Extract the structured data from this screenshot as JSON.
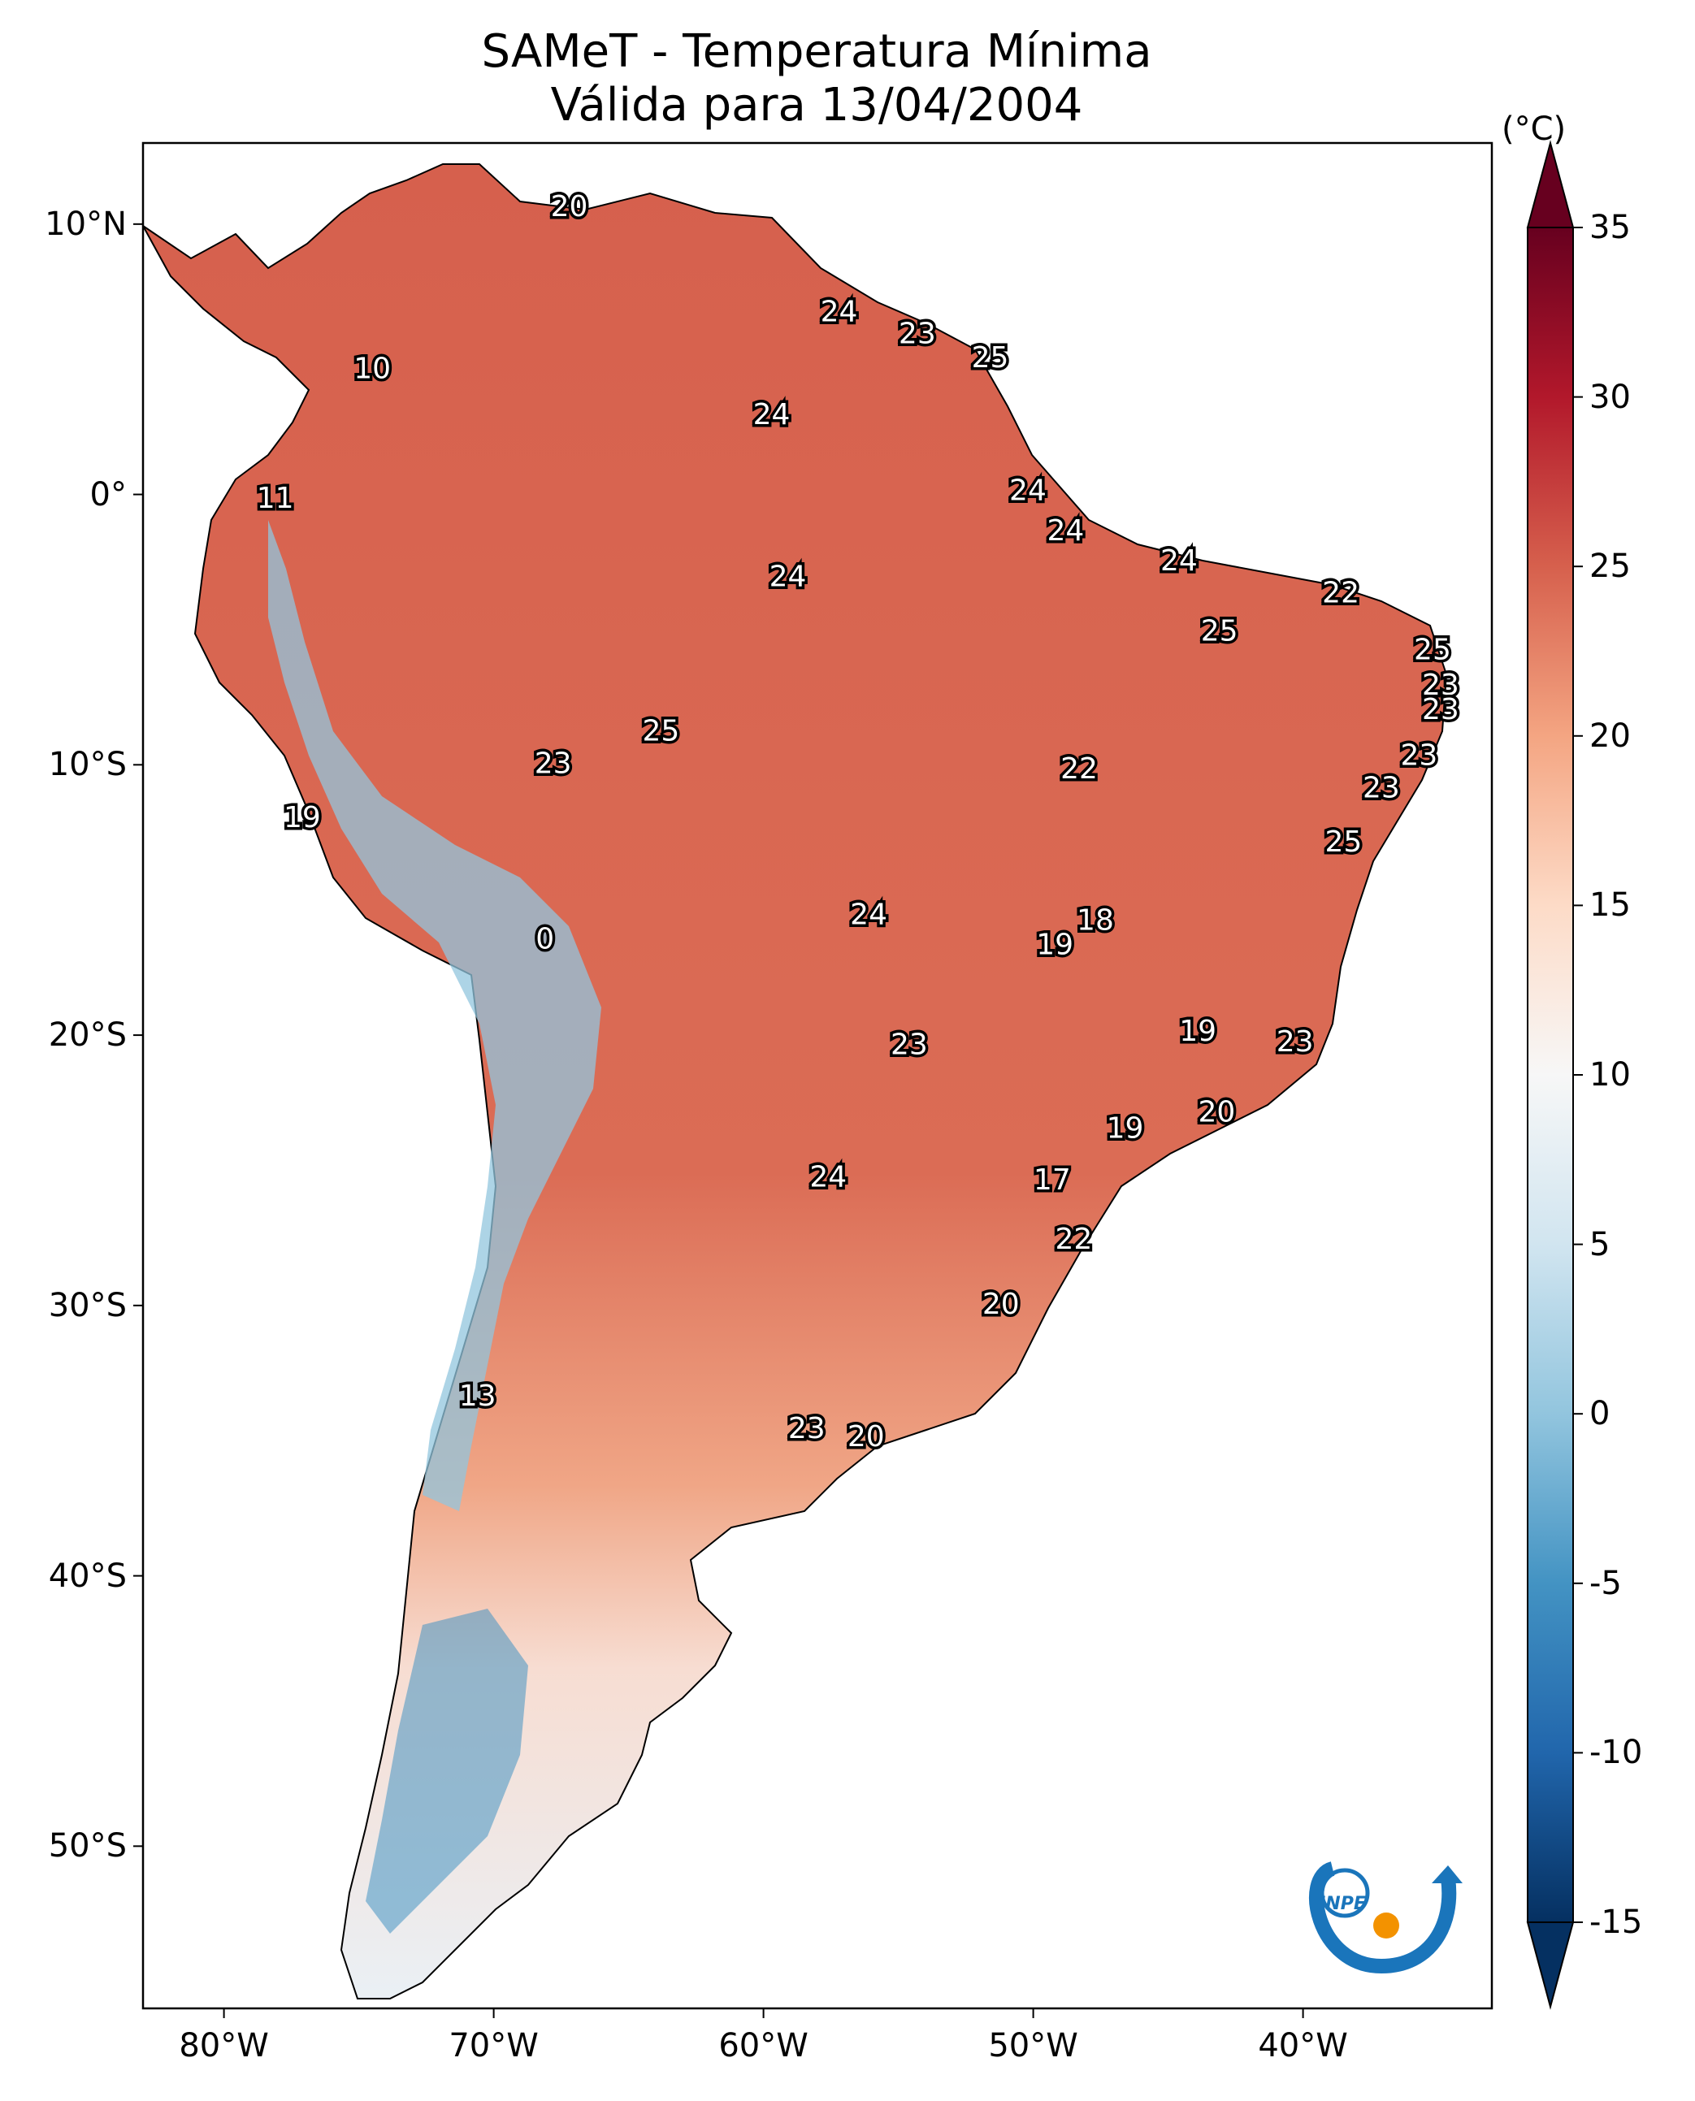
{
  "title": {
    "line1": "SAMeT - Temperatura Mínima",
    "line2": "Válida para 13/04/2004"
  },
  "map": {
    "lon_range": [
      -83,
      -33
    ],
    "lat_range": [
      -56,
      13
    ],
    "lat_ticks": [
      {
        "value": 10,
        "label": "10°N"
      },
      {
        "value": 0,
        "label": "0°"
      },
      {
        "value": -10,
        "label": "10°S"
      },
      {
        "value": -20,
        "label": "20°S"
      },
      {
        "value": -30,
        "label": "30°S"
      },
      {
        "value": -40,
        "label": "40°S"
      },
      {
        "value": -50,
        "label": "50°S"
      }
    ],
    "lon_ticks": [
      {
        "value": -80,
        "label": "80°W"
      },
      {
        "value": -70,
        "label": "70°W"
      },
      {
        "value": -60,
        "label": "60°W"
      },
      {
        "value": -50,
        "label": "50°W"
      },
      {
        "value": -40,
        "label": "40°W"
      }
    ],
    "station_labels": [
      {
        "lon": -67.2,
        "lat": 10.6,
        "value": "20"
      },
      {
        "lon": -57.2,
        "lat": 6.7,
        "value": "24"
      },
      {
        "lon": -54.3,
        "lat": 5.9,
        "value": "23"
      },
      {
        "lon": -51.6,
        "lat": 5.0,
        "value": "25"
      },
      {
        "lon": -74.5,
        "lat": 4.6,
        "value": "10"
      },
      {
        "lon": -59.7,
        "lat": 2.9,
        "value": "24"
      },
      {
        "lon": -50.2,
        "lat": 0.1,
        "value": "24"
      },
      {
        "lon": -78.1,
        "lat": -0.2,
        "value": "11"
      },
      {
        "lon": -48.8,
        "lat": -1.4,
        "value": "24"
      },
      {
        "lon": -44.6,
        "lat": -2.5,
        "value": "24"
      },
      {
        "lon": -59.1,
        "lat": -3.1,
        "value": "24"
      },
      {
        "lon": -38.6,
        "lat": -3.7,
        "value": "22"
      },
      {
        "lon": -43.1,
        "lat": -5.1,
        "value": "25"
      },
      {
        "lon": -35.2,
        "lat": -5.8,
        "value": "25"
      },
      {
        "lon": -34.9,
        "lat": -7.1,
        "value": "23"
      },
      {
        "lon": -34.9,
        "lat": -8.0,
        "value": "23"
      },
      {
        "lon": -63.8,
        "lat": -8.8,
        "value": "25"
      },
      {
        "lon": -35.7,
        "lat": -9.7,
        "value": "23"
      },
      {
        "lon": -67.8,
        "lat": -10.0,
        "value": "23"
      },
      {
        "lon": -48.3,
        "lat": -10.2,
        "value": "22"
      },
      {
        "lon": -37.1,
        "lat": -10.9,
        "value": "23"
      },
      {
        "lon": -77.1,
        "lat": -12.0,
        "value": "19"
      },
      {
        "lon": -38.5,
        "lat": -12.9,
        "value": "25"
      },
      {
        "lon": -56.1,
        "lat": -15.6,
        "value": "24"
      },
      {
        "lon": -47.7,
        "lat": -15.8,
        "value": "18"
      },
      {
        "lon": -49.2,
        "lat": -16.7,
        "value": "19"
      },
      {
        "lon": -68.1,
        "lat": -16.5,
        "value": "0"
      },
      {
        "lon": -43.9,
        "lat": -19.9,
        "value": "19"
      },
      {
        "lon": -40.3,
        "lat": -20.3,
        "value": "23"
      },
      {
        "lon": -54.6,
        "lat": -20.4,
        "value": "23"
      },
      {
        "lon": -43.2,
        "lat": -22.9,
        "value": "20"
      },
      {
        "lon": -46.6,
        "lat": -23.5,
        "value": "19"
      },
      {
        "lon": -57.6,
        "lat": -25.3,
        "value": "24"
      },
      {
        "lon": -49.3,
        "lat": -25.4,
        "value": "17"
      },
      {
        "lon": -48.5,
        "lat": -27.6,
        "value": "22"
      },
      {
        "lon": -51.2,
        "lat": -30.0,
        "value": "20"
      },
      {
        "lon": -70.6,
        "lat": -33.4,
        "value": "13"
      },
      {
        "lon": -58.4,
        "lat": -34.6,
        "value": "23"
      },
      {
        "lon": -56.2,
        "lat": -34.9,
        "value": "20"
      }
    ]
  },
  "colorbar": {
    "unit": "(°C)",
    "min": -15,
    "max": 35,
    "ticks": [
      "35",
      "30",
      "25",
      "20",
      "15",
      "10",
      "5",
      "0",
      "-5",
      "-10",
      "-15"
    ],
    "colors": [
      "#053061",
      "#2166ac",
      "#4393c3",
      "#92c5de",
      "#d1e5f0",
      "#f7f7f7",
      "#fddbc7",
      "#f4a582",
      "#d6604d",
      "#b2182b",
      "#67001f"
    ]
  },
  "logo": {
    "text": "INPE",
    "ring_color": "#1a75bb",
    "dot_color": "#f39200"
  }
}
